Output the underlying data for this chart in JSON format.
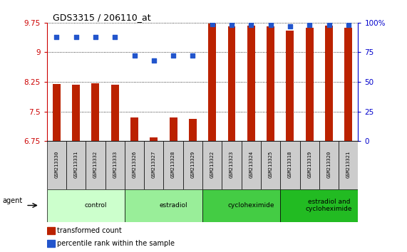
{
  "title": "GDS3315 / 206110_at",
  "samples": [
    "GSM213330",
    "GSM213331",
    "GSM213332",
    "GSM213333",
    "GSM213326",
    "GSM213327",
    "GSM213328",
    "GSM213329",
    "GSM213322",
    "GSM213323",
    "GSM213324",
    "GSM213325",
    "GSM213318",
    "GSM213319",
    "GSM213320",
    "GSM213321"
  ],
  "bar_values": [
    8.19,
    8.18,
    8.21,
    8.18,
    7.35,
    6.85,
    7.35,
    7.32,
    9.73,
    9.65,
    9.68,
    9.65,
    9.55,
    9.62,
    9.68,
    9.62
  ],
  "percentile_values": [
    88,
    88,
    88,
    88,
    72,
    68,
    72,
    72,
    99,
    98,
    98,
    98,
    97,
    98,
    98,
    98
  ],
  "groups": [
    {
      "label": "control",
      "start": 0,
      "end": 4,
      "color": "#ccffcc"
    },
    {
      "label": "estradiol",
      "start": 4,
      "end": 8,
      "color": "#99ee99"
    },
    {
      "label": "cycloheximide",
      "start": 8,
      "end": 12,
      "color": "#44cc44"
    },
    {
      "label": "estradiol and\ncycloheximide",
      "start": 12,
      "end": 16,
      "color": "#22bb22"
    }
  ],
  "ylim": [
    6.75,
    9.75
  ],
  "yticks": [
    6.75,
    7.5,
    8.25,
    9.0,
    9.75
  ],
  "ytick_labels": [
    "6.75",
    "7.5",
    "8.25",
    "9",
    "9.75"
  ],
  "right_yticks": [
    0,
    25,
    50,
    75,
    100
  ],
  "right_ytick_labels": [
    "0",
    "25",
    "50",
    "75",
    "100%"
  ],
  "bar_color": "#bb2200",
  "dot_color": "#2255cc",
  "grid_color": "#000000",
  "agent_label": "agent",
  "legend_bar": "transformed count",
  "legend_dot": "percentile rank within the sample",
  "left_tick_color": "#cc0000",
  "right_tick_color": "#0000cc",
  "bar_width": 0.4,
  "sample_box_color": "#cccccc"
}
